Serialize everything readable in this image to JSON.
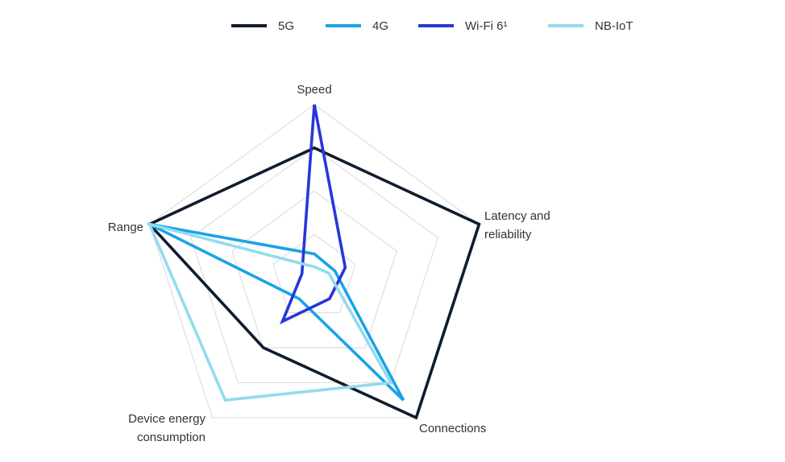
{
  "chart_data": {
    "type": "radar",
    "axes": [
      "Speed",
      "Latency and reliability",
      "Connections",
      "Device energy consumption",
      "Range"
    ],
    "axis_label_lines": [
      [
        "Speed"
      ],
      [
        "Latency and",
        "reliability"
      ],
      [
        "Connections"
      ],
      [
        "Device energy",
        "consumption"
      ],
      [
        "Range"
      ]
    ],
    "rlim": [
      0,
      4
    ],
    "grid_rings": 4,
    "grid": true,
    "legend_position": "top",
    "series": [
      {
        "name": "5G",
        "color": "#0f1c2e",
        "values": [
          3.0,
          4.0,
          4.0,
          2.0,
          4.0
        ]
      },
      {
        "name": "4G",
        "color": "#1aa3e8",
        "values": [
          0.55,
          0.5,
          3.5,
          0.6,
          4.0
        ]
      },
      {
        "name": "Wi-Fi 6¹",
        "color": "#2737d8",
        "values": [
          4.0,
          0.75,
          0.6,
          1.25,
          0.3
        ]
      },
      {
        "name": "NB-IoT",
        "color": "#93dbee",
        "values": [
          0.25,
          0.35,
          3.0,
          3.5,
          4.0
        ]
      }
    ]
  }
}
